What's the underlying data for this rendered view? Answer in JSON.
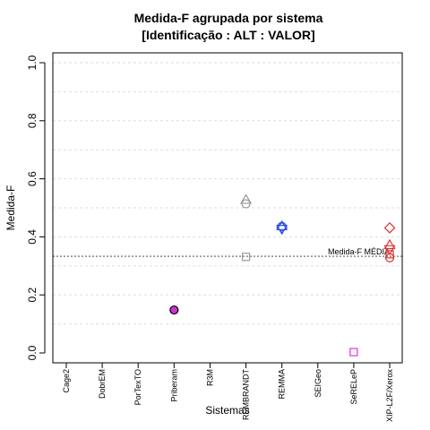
{
  "chart_data": {
    "type": "scatter",
    "title_line1": "Medida-F agrupada por sistema",
    "title_line2": "[Identificação : ALT : VALOR]",
    "xlabel": "Sistemas",
    "ylabel": "Medida-F",
    "ylim": [
      0,
      1
    ],
    "yticks": [
      "0.0",
      "0.2",
      "0.4",
      "0.6",
      "0.8",
      "1.0"
    ],
    "ytick_values": [
      0,
      0.2,
      0.4,
      0.6,
      0.8,
      1.0
    ],
    "grid_values": [
      0.1,
      0.2,
      0.3,
      0.4,
      0.5,
      0.6,
      0.7,
      0.8,
      0.9,
      1.0
    ],
    "grid": true,
    "categories": [
      "Cage2",
      "DobrEM",
      "PorTexTO",
      "Priberam",
      "R3M",
      "REMBRANDT",
      "REMMA",
      "SEIGeo",
      "SeRELeP",
      "XIP-L2F/Xerox"
    ],
    "mean_line": {
      "value": 0.333,
      "label": "Medida-F MÉDIA",
      "color": "#888888"
    },
    "points": [
      {
        "category": "Priberam",
        "value": 0.148,
        "shape": "circle-filled",
        "color": "#cc33cc"
      },
      {
        "category": "REMBRANDT",
        "value": 0.528,
        "shape": "triangle-up",
        "color": "#999999"
      },
      {
        "category": "REMBRANDT",
        "value": 0.514,
        "shape": "circle",
        "color": "#999999"
      },
      {
        "category": "REMBRANDT",
        "value": 0.331,
        "shape": "square",
        "color": "#999999"
      },
      {
        "category": "REMMA",
        "value": 0.437,
        "shape": "triangle-up",
        "color": "#3355dd"
      },
      {
        "category": "REMMA",
        "value": 0.427,
        "shape": "triangle-down",
        "color": "#3355dd"
      },
      {
        "category": "REMMA",
        "value": 0.432,
        "shape": "diamond",
        "color": "#3355dd"
      },
      {
        "category": "REMMA",
        "value": 0.436,
        "shape": "circle",
        "color": "#3355dd"
      },
      {
        "category": "SeRELeP",
        "value": 0.003,
        "shape": "square",
        "color": "#dd33dd"
      },
      {
        "category": "XIP-L2F/Xerox",
        "value": 0.431,
        "shape": "diamond",
        "color": "#dd3333"
      },
      {
        "category": "XIP-L2F/Xerox",
        "value": 0.372,
        "shape": "triangle-up",
        "color": "#dd3333"
      },
      {
        "category": "XIP-L2F/Xerox",
        "value": 0.357,
        "shape": "triangle-down",
        "color": "#dd3333"
      },
      {
        "category": "XIP-L2F/Xerox",
        "value": 0.34,
        "shape": "square",
        "color": "#dd3333"
      },
      {
        "category": "XIP-L2F/Xerox",
        "value": 0.328,
        "shape": "circle",
        "color": "#dd3333"
      }
    ]
  }
}
